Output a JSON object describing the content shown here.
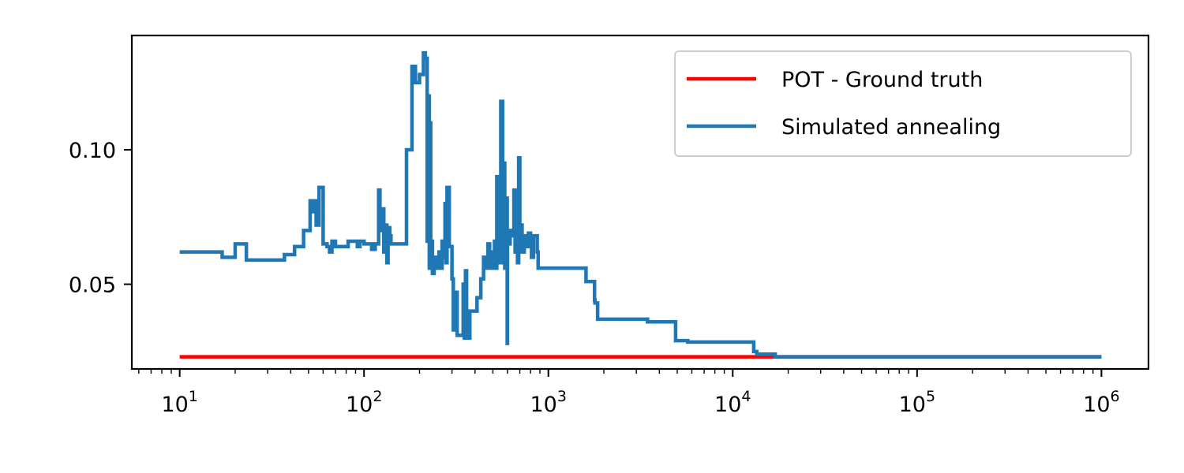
{
  "chart_data": {
    "type": "line",
    "title": "",
    "xlabel": "",
    "ylabel": "",
    "xscale": "log",
    "xlim": [
      5.5,
      1800000
    ],
    "ylim": [
      0.0185,
      0.1425
    ],
    "x_ticks": [
      {
        "base": "10",
        "exp": "1"
      },
      {
        "base": "10",
        "exp": "2"
      },
      {
        "base": "10",
        "exp": "3"
      },
      {
        "base": "10",
        "exp": "4"
      },
      {
        "base": "10",
        "exp": "5"
      },
      {
        "base": "10",
        "exp": "6"
      }
    ],
    "y_ticks": [
      "0.05",
      "0.10"
    ],
    "grid": false,
    "legend_position": "top-right",
    "series": [
      {
        "name": "POT - Ground truth",
        "color": "#ff0000",
        "step": false,
        "points": [
          [
            10,
            0.023
          ],
          [
            1000000,
            0.023
          ]
        ]
      },
      {
        "name": "Simulated annealing",
        "color": "#1f77b4",
        "step": true,
        "points": [
          [
            10,
            0.062
          ],
          [
            16,
            0.062
          ],
          [
            17,
            0.06
          ],
          [
            19,
            0.06
          ],
          [
            20,
            0.065
          ],
          [
            22,
            0.065
          ],
          [
            23,
            0.059
          ],
          [
            35,
            0.059
          ],
          [
            37,
            0.061
          ],
          [
            40,
            0.061
          ],
          [
            42,
            0.064
          ],
          [
            45,
            0.064
          ],
          [
            47,
            0.07
          ],
          [
            49,
            0.07
          ],
          [
            51,
            0.081
          ],
          [
            52,
            0.077
          ],
          [
            54,
            0.081
          ],
          [
            55,
            0.072
          ],
          [
            57,
            0.086
          ],
          [
            59,
            0.086
          ],
          [
            60,
            0.065
          ],
          [
            63,
            0.064
          ],
          [
            65,
            0.062
          ],
          [
            67,
            0.066
          ],
          [
            70,
            0.064
          ],
          [
            80,
            0.064
          ],
          [
            82,
            0.066
          ],
          [
            90,
            0.066
          ],
          [
            92,
            0.064
          ],
          [
            95,
            0.066
          ],
          [
            100,
            0.065
          ],
          [
            110,
            0.063
          ],
          [
            115,
            0.065
          ],
          [
            120,
            0.085
          ],
          [
            122,
            0.07
          ],
          [
            125,
            0.078
          ],
          [
            128,
            0.062
          ],
          [
            130,
            0.072
          ],
          [
            133,
            0.058
          ],
          [
            135,
            0.071
          ],
          [
            138,
            0.068
          ],
          [
            140,
            0.065
          ],
          [
            145,
            0.065
          ],
          [
            160,
            0.065
          ],
          [
            170,
            0.1
          ],
          [
            180,
            0.1
          ],
          [
            182,
            0.131
          ],
          [
            190,
            0.125
          ],
          [
            200,
            0.128
          ],
          [
            210,
            0.136
          ],
          [
            215,
            0.134
          ],
          [
            220,
            0.066
          ],
          [
            222,
            0.12
          ],
          [
            226,
            0.056
          ],
          [
            228,
            0.11
          ],
          [
            230,
            0.066
          ],
          [
            235,
            0.054
          ],
          [
            240,
            0.06
          ],
          [
            245,
            0.056
          ],
          [
            255,
            0.062
          ],
          [
            260,
            0.056
          ],
          [
            265,
            0.066
          ],
          [
            270,
            0.06
          ],
          [
            275,
            0.08
          ],
          [
            278,
            0.058
          ],
          [
            282,
            0.086
          ],
          [
            290,
            0.064
          ],
          [
            300,
            0.052
          ],
          [
            305,
            0.033
          ],
          [
            310,
            0.047
          ],
          [
            320,
            0.031
          ],
          [
            340,
            0.031
          ],
          [
            345,
            0.05
          ],
          [
            350,
            0.03
          ],
          [
            355,
            0.055
          ],
          [
            360,
            0.032
          ],
          [
            365,
            0.04
          ],
          [
            370,
            0.03
          ],
          [
            375,
            0.04
          ],
          [
            390,
            0.04
          ],
          [
            410,
            0.045
          ],
          [
            430,
            0.052
          ],
          [
            445,
            0.06
          ],
          [
            455,
            0.056
          ],
          [
            470,
            0.065
          ],
          [
            480,
            0.056
          ],
          [
            490,
            0.062
          ],
          [
            500,
            0.056
          ],
          [
            510,
            0.066
          ],
          [
            520,
            0.056
          ],
          [
            525,
            0.09
          ],
          [
            530,
            0.058
          ],
          [
            540,
            0.08
          ],
          [
            548,
            0.06
          ],
          [
            552,
            0.118
          ],
          [
            556,
            0.06
          ],
          [
            560,
            0.118
          ],
          [
            565,
            0.058
          ],
          [
            570,
            0.095
          ],
          [
            580,
            0.056
          ],
          [
            590,
            0.082
          ],
          [
            598,
            0.028
          ],
          [
            600,
            0.065
          ],
          [
            620,
            0.07
          ],
          [
            640,
            0.068
          ],
          [
            650,
            0.085
          ],
          [
            660,
            0.062
          ],
          [
            670,
            0.072
          ],
          [
            680,
            0.058
          ],
          [
            690,
            0.097
          ],
          [
            700,
            0.072
          ],
          [
            720,
            0.062
          ],
          [
            740,
            0.068
          ],
          [
            760,
            0.064
          ],
          [
            780,
            0.069
          ],
          [
            800,
            0.066
          ],
          [
            810,
            0.06
          ],
          [
            830,
            0.068
          ],
          [
            870,
            0.062
          ],
          [
            880,
            0.056
          ],
          [
            1580,
            0.056
          ],
          [
            1600,
            0.051
          ],
          [
            1750,
            0.051
          ],
          [
            1780,
            0.044
          ],
          [
            1790,
            0.043
          ],
          [
            1850,
            0.037
          ],
          [
            3300,
            0.037
          ],
          [
            3450,
            0.036
          ],
          [
            4800,
            0.036
          ],
          [
            4900,
            0.029
          ],
          [
            5600,
            0.029
          ],
          [
            5700,
            0.0285
          ],
          [
            12000,
            0.0285
          ],
          [
            13000,
            0.025
          ],
          [
            13500,
            0.024
          ],
          [
            16500,
            0.024
          ],
          [
            17000,
            0.023
          ],
          [
            1000000,
            0.023
          ]
        ]
      }
    ]
  }
}
